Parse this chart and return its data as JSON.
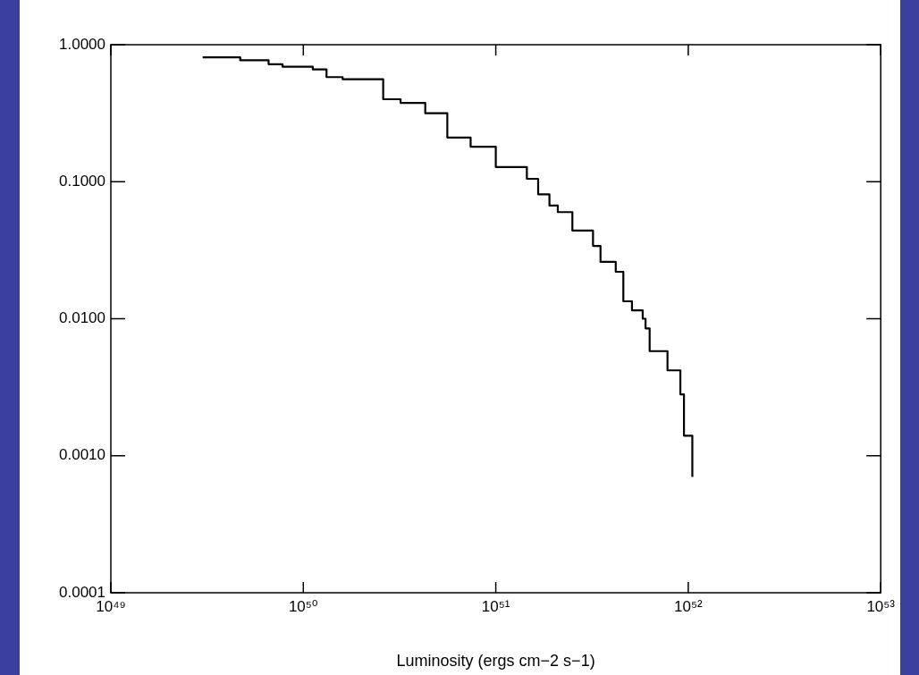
{
  "chart_data": {
    "type": "step",
    "xlabel": "Luminosity (ergs cm−2 s−1)",
    "log": "xy",
    "marker": "none",
    "color": "#000000",
    "x": [
      3e+49,
      4.7e+49,
      6.6e+49,
      7.8e+49,
      1.12e+50,
      1.32e+50,
      1.6e+50,
      2.6e+50,
      3.2e+50,
      4.3e+50,
      5.6e+50,
      7.4e+50,
      1e+51,
      1.45e+51,
      1.66e+51,
      1.9e+51,
      2.1e+51,
      2.5e+51,
      3.2e+51,
      3.5e+51,
      4.2e+51,
      4.6e+51,
      5.1e+51,
      5.8e+51,
      6e+51,
      6.3e+51,
      7.8e+51,
      9.1e+51,
      9.5e+51,
      1.05e+52
    ],
    "values": [
      0.81,
      0.77,
      0.72,
      0.69,
      0.66,
      0.58,
      0.56,
      0.4,
      0.376,
      0.316,
      0.21,
      0.18,
      0.128,
      0.105,
      0.081,
      0.067,
      0.06,
      0.044,
      0.034,
      0.026,
      0.022,
      0.0134,
      0.0115,
      0.01,
      0.0085,
      0.0058,
      0.0042,
      0.0028,
      0.0014,
      0.0007
    ],
    "xlim": [
      1e+49,
      1e+53
    ],
    "ylim": [
      0.0001,
      1
    ],
    "xticks": [
      {
        "value": 1e+49,
        "label": "10⁴⁹"
      },
      {
        "value": 1e+50,
        "label": "10⁵⁰"
      },
      {
        "value": 1e+51,
        "label": "10⁵¹"
      },
      {
        "value": 1e+52,
        "label": "10⁵²"
      },
      {
        "value": 1e+53,
        "label": "10⁵³"
      }
    ],
    "yticks": [
      {
        "value": 1,
        "label": "1.0000"
      },
      {
        "value": 0.1,
        "label": "0.1000"
      },
      {
        "value": 0.01,
        "label": "0.0100"
      },
      {
        "value": 0.001,
        "label": "0.0010"
      },
      {
        "value": 0.0001,
        "label": "0.0001"
      }
    ]
  }
}
